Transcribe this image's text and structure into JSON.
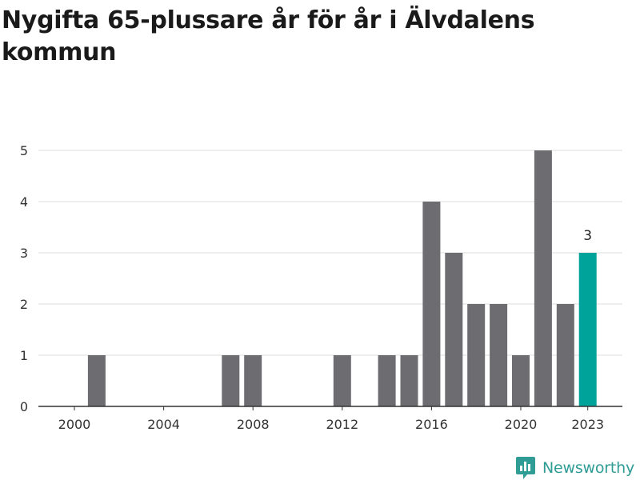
{
  "title": "Nygifta 65-plussare år för år i Älvdalens kommun",
  "brand": {
    "name": "Newsworthy",
    "color": "#2f9c95"
  },
  "chart_data": {
    "type": "bar",
    "title": "Nygifta 65-plussare år för år i Älvdalens kommun",
    "xlabel": "",
    "ylabel": "",
    "x": [
      2000,
      2001,
      2002,
      2003,
      2004,
      2005,
      2006,
      2007,
      2008,
      2009,
      2010,
      2011,
      2012,
      2013,
      2014,
      2015,
      2016,
      2017,
      2018,
      2019,
      2020,
      2021,
      2022,
      2023
    ],
    "values": [
      0,
      1,
      0,
      0,
      0,
      0,
      0,
      1,
      1,
      0,
      0,
      0,
      1,
      0,
      1,
      1,
      4,
      3,
      2,
      2,
      1,
      5,
      2,
      3
    ],
    "x_ticks": [
      "2000",
      "2004",
      "2008",
      "2012",
      "2016",
      "2020",
      "2023"
    ],
    "y_ticks": [
      "0",
      "1",
      "2",
      "3",
      "4",
      "5"
    ],
    "ylim": [
      0,
      5
    ],
    "grid": true,
    "highlight_year": 2023,
    "highlight_label": "3",
    "bar_color": "#6d6c71",
    "highlight_color": "#00a39a",
    "grid_color": "#dcdcdc",
    "axis_color": "#333333"
  }
}
